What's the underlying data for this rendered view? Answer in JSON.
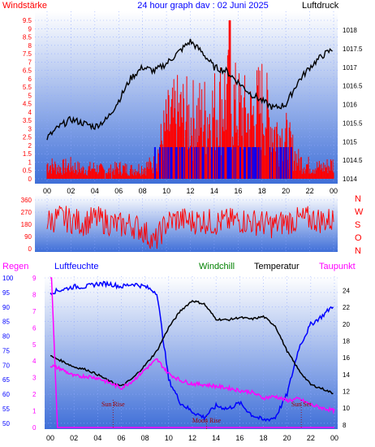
{
  "colors": {
    "windspeed": "#ff0000",
    "winddir": "#ff0000",
    "pressure": "#000000",
    "humidity": "#0000ff",
    "rain": "#ff00ff",
    "windchill": "#008000",
    "temperature": "#000000",
    "dewpoint": "#ff00ff",
    "grid": "#8fa8ff",
    "panel_top": "#ffffff",
    "panel_bottom": "#3f6fd8"
  },
  "chart_data": [
    {
      "type": "line",
      "id": "wind-pressure",
      "title": "24 hour graph dav : 02 Juni 2025",
      "left_label": "Windstärke",
      "right_label": "Luftdruck",
      "x_ticks": [
        "00",
        "02",
        "04",
        "06",
        "08",
        "10",
        "12",
        "14",
        "16",
        "18",
        "20",
        "22",
        "00"
      ],
      "left_ticks": [
        "0",
        "0.5",
        "1",
        "1.5",
        "2",
        "2.5",
        "3",
        "3.5",
        "4",
        "4.5",
        "5",
        "5.5",
        "6",
        "6.5",
        "7",
        "7.5",
        "8",
        "8.5",
        "9",
        "9.5"
      ],
      "left_range": [
        0,
        9.5
      ],
      "right_ticks": [
        "1014",
        "1014.5",
        "1015",
        "1015.5",
        "1016",
        "1016.5",
        "1017",
        "1017.5",
        "1018"
      ],
      "right_range": [
        1013.9,
        1018.3
      ],
      "grid": true,
      "series": [
        {
          "name": "Luftdruck",
          "axis": "right",
          "x": [
            0,
            1,
            2,
            3,
            4,
            5,
            6,
            7,
            8,
            9,
            10,
            11,
            12,
            13,
            14,
            15,
            16,
            17,
            18,
            19,
            20,
            21,
            22,
            23,
            24
          ],
          "values": [
            1015.1,
            1015.4,
            1015.6,
            1015.5,
            1015.4,
            1015.6,
            1016.1,
            1016.7,
            1017.0,
            1016.9,
            1017.1,
            1017.4,
            1017.7,
            1017.4,
            1017.0,
            1016.9,
            1016.6,
            1016.3,
            1016.1,
            1015.9,
            1016.0,
            1016.6,
            1017.0,
            1017.3,
            1017.5
          ]
        },
        {
          "name": "Windstärke",
          "axis": "left",
          "x": [
            0,
            1,
            2,
            3,
            4,
            5,
            6,
            7,
            8,
            9,
            10,
            11,
            12,
            13,
            14,
            15,
            16,
            17,
            18,
            19,
            20,
            21,
            22,
            23,
            24
          ],
          "values": [
            0.8,
            0.6,
            0.7,
            0.5,
            0.6,
            0.4,
            0.6,
            0.5,
            0.6,
            0.8,
            2.8,
            3.4,
            3.2,
            3.3,
            3.6,
            4.4,
            3.6,
            3.2,
            4.0,
            2.6,
            2.2,
            1.0,
            0.7,
            0.6,
            0.8
          ]
        }
      ]
    },
    {
      "type": "line",
      "id": "wind-direction",
      "left_ticks": [
        "0",
        "90",
        "180",
        "270",
        "360"
      ],
      "left_range": [
        0,
        360
      ],
      "right_labels": [
        "N",
        "W",
        "S",
        "O",
        "N"
      ],
      "grid": true,
      "series": [
        {
          "name": "Windrichtung",
          "x": [
            0,
            1,
            2,
            3,
            4,
            5,
            6,
            7,
            8,
            9,
            10,
            11,
            12,
            13,
            14,
            15,
            16,
            17,
            18,
            19,
            20,
            21,
            22,
            23,
            24
          ],
          "values": [
            200,
            230,
            210,
            190,
            220,
            200,
            170,
            180,
            140,
            40,
            190,
            220,
            200,
            210,
            190,
            200,
            210,
            200,
            190,
            170,
            200,
            210,
            220,
            210,
            210
          ]
        }
      ]
    },
    {
      "type": "line",
      "id": "climate",
      "labels": {
        "rain": "Regen",
        "humidity": "Luftfeuchte",
        "windchill": "Windchill",
        "temperature": "Temperatur",
        "dewpoint": "Taupunkt"
      },
      "rain_ticks": [
        "0",
        "1",
        "2",
        "3",
        "4",
        "5",
        "6",
        "7",
        "8",
        "9"
      ],
      "rain_range": [
        0,
        9
      ],
      "humidity_ticks": [
        "50",
        "55",
        "60",
        "65",
        "70",
        "75",
        "80",
        "85",
        "90",
        "95",
        "100"
      ],
      "humidity_range": [
        48,
        100
      ],
      "temp_ticks": [
        "8",
        "10",
        "12",
        "14",
        "16",
        "18",
        "20",
        "22",
        "24"
      ],
      "temp_range": [
        7.5,
        25.5
      ],
      "annotations": [
        "Sun Rise",
        "Moon Rise",
        "Sun Set"
      ],
      "x_ticks": [
        "00",
        "02",
        "04",
        "06",
        "08",
        "10",
        "12",
        "14",
        "16",
        "18",
        "20",
        "22",
        "00"
      ],
      "grid": true,
      "series": [
        {
          "name": "Luftfeuchte",
          "axis": "humidity",
          "x": [
            0,
            1,
            2,
            3,
            4,
            5,
            6,
            7,
            8,
            9,
            10,
            11,
            12,
            13,
            14,
            15,
            16,
            17,
            18,
            19,
            20,
            21,
            22,
            23,
            24
          ],
          "values": [
            95,
            96,
            97,
            97,
            98,
            98,
            97,
            98,
            97,
            95,
            65,
            57,
            54,
            52,
            56,
            55,
            57,
            53,
            51,
            52,
            60,
            76,
            84,
            87,
            91
          ]
        },
        {
          "name": "Temperatur",
          "axis": "temp",
          "x": [
            0,
            1,
            2,
            3,
            4,
            5,
            6,
            7,
            8,
            9,
            10,
            11,
            12,
            13,
            14,
            15,
            16,
            17,
            18,
            19,
            20,
            21,
            22,
            23,
            24
          ],
          "values": [
            16.2,
            15.6,
            14.9,
            14.6,
            14.0,
            13.2,
            12.6,
            13.6,
            15.1,
            16.8,
            19.6,
            21.6,
            22.8,
            22.4,
            20.6,
            20.5,
            20.8,
            20.6,
            20.9,
            19.8,
            16.8,
            14.5,
            12.8,
            12.3,
            11.7
          ]
        },
        {
          "name": "Taupunkt",
          "axis": "temp",
          "x": [
            0,
            1,
            2,
            3,
            4,
            5,
            6,
            7,
            8,
            9,
            10,
            11,
            12,
            13,
            14,
            15,
            16,
            17,
            18,
            19,
            20,
            21,
            22,
            23,
            24
          ],
          "values": [
            15.1,
            14.6,
            13.8,
            13.8,
            13.6,
            13.0,
            12.4,
            13.3,
            14.6,
            15.8,
            14.1,
            13.3,
            12.9,
            12.8,
            12.6,
            12.4,
            12.1,
            11.9,
            11.2,
            11.4,
            10.9,
            11.1,
            10.4,
            10.0,
            9.7
          ]
        },
        {
          "name": "Regen",
          "axis": "rain",
          "x": [
            0,
            0.1,
            0.6,
            24
          ],
          "values": [
            9,
            9,
            0,
            0
          ]
        }
      ]
    }
  ]
}
